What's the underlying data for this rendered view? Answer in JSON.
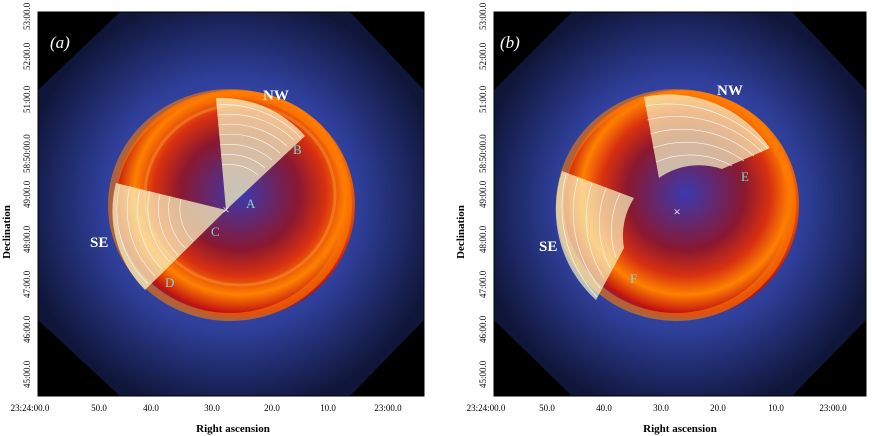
{
  "figure": {
    "xlabel": "Right ascension",
    "ylabel": "Declination",
    "x_ticks": [
      "23:24:00.0",
      "50.0",
      "40.0",
      "30.0",
      "20.0",
      "10.0",
      "23:00.0"
    ],
    "y_ticks": [
      "45:00.0",
      "46:00.0",
      "47:00.0",
      "48:00.0",
      "49:00.0",
      "58:50:00.0",
      "51:00.0",
      "52:00.0",
      "53:00.0"
    ],
    "colors": {
      "background": "#0a0a12",
      "halo": "#2f3f9a",
      "shell_red": "#c01010",
      "shell_orange": "#ff7a00",
      "shell_yellow": "#ffe060",
      "sector_fill": "#f8f2c0",
      "feature_label": "#7fd8d8"
    }
  },
  "panels": [
    {
      "label": "(a)",
      "regions": {
        "nw": "NW",
        "se": "SE"
      },
      "features": [
        {
          "label": "A"
        },
        {
          "label": "B"
        },
        {
          "label": "C"
        },
        {
          "label": "D"
        }
      ],
      "center_marker": "×"
    },
    {
      "label": "(b)",
      "regions": {
        "nw": "NW",
        "se": "SE"
      },
      "features": [
        {
          "label": "E"
        },
        {
          "label": "F"
        }
      ],
      "center_marker": "×"
    }
  ]
}
